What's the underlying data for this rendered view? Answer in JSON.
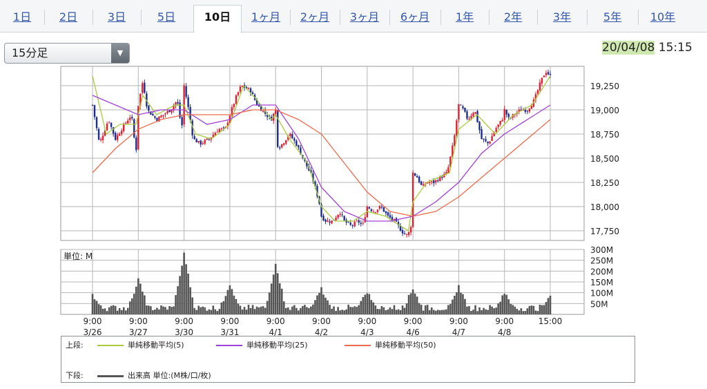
{
  "tabs": [
    {
      "label": "1日",
      "active": false
    },
    {
      "label": "2日",
      "active": false
    },
    {
      "label": "3日",
      "active": false
    },
    {
      "label": "5日",
      "active": false
    },
    {
      "label": "10日",
      "active": true
    },
    {
      "label": "1ヶ月",
      "active": false
    },
    {
      "label": "2ヶ月",
      "active": false
    },
    {
      "label": "3ヶ月",
      "active": false
    },
    {
      "label": "6ヶ月",
      "active": false
    },
    {
      "label": "1年",
      "active": false
    },
    {
      "label": "2年",
      "active": false
    },
    {
      "label": "3年",
      "active": false
    },
    {
      "label": "5年",
      "active": false
    },
    {
      "label": "10年",
      "active": false
    }
  ],
  "interval_select": {
    "value": "15分足"
  },
  "timestamp": {
    "date": "20/04/08",
    "time": "15:15"
  },
  "colors": {
    "up": "#e01e2e",
    "down": "#1d2c8f",
    "ma5": "#a8cc3a",
    "ma25": "#a040d8",
    "ma50": "#ee6a4a",
    "volume": "#555555",
    "grid": "#b5b5b5"
  },
  "chart_data": [
    {
      "type": "candlestick",
      "x_ticks": [
        {
          "time": "9:00",
          "date": "3/26"
        },
        {
          "time": "9:00",
          "date": "3/27"
        },
        {
          "time": "9:00",
          "date": "3/30"
        },
        {
          "time": "9:00",
          "date": "3/31"
        },
        {
          "time": "9:00",
          "date": "4/1"
        },
        {
          "time": "9:00",
          "date": "4/2"
        },
        {
          "time": "9:00",
          "date": "4/3"
        },
        {
          "time": "9:00",
          "date": "4/6"
        },
        {
          "time": "9:00",
          "date": "4/7"
        },
        {
          "time": "9:00",
          "date": "4/8"
        },
        {
          "time": "15:00",
          "date": ""
        }
      ],
      "y_ticks": [
        "19,250",
        "19,000",
        "18,750",
        "18,500",
        "18,250",
        "18,000",
        "17,750"
      ],
      "ylim": [
        17650,
        19450
      ],
      "grid": true,
      "close_path": [
        [
          0,
          19050
        ],
        [
          0.15,
          18650
        ],
        [
          0.35,
          18900
        ],
        [
          0.5,
          18700
        ],
        [
          0.7,
          18850
        ],
        [
          0.85,
          18950
        ],
        [
          0.95,
          18550
        ],
        [
          1.0,
          19050
        ],
        [
          1.1,
          19300
        ],
        [
          1.2,
          19000
        ],
        [
          1.4,
          18900
        ],
        [
          1.55,
          18950
        ],
        [
          1.7,
          19000
        ],
        [
          1.85,
          19100
        ],
        [
          1.95,
          18800
        ],
        [
          2.0,
          19250
        ],
        [
          2.1,
          19000
        ],
        [
          2.2,
          18700
        ],
        [
          2.35,
          18650
        ],
        [
          2.55,
          18700
        ],
        [
          2.75,
          18800
        ],
        [
          2.9,
          18800
        ],
        [
          3.0,
          18950
        ],
        [
          3.15,
          19150
        ],
        [
          3.25,
          19250
        ],
        [
          3.45,
          19200
        ],
        [
          3.6,
          19050
        ],
        [
          3.8,
          18950
        ],
        [
          3.9,
          18900
        ],
        [
          4.0,
          19000
        ],
        [
          4.05,
          18600
        ],
        [
          4.15,
          18650
        ],
        [
          4.3,
          18750
        ],
        [
          4.45,
          18650
        ],
        [
          4.6,
          18500
        ],
        [
          4.8,
          18300
        ],
        [
          4.95,
          18050
        ],
        [
          5.0,
          17900
        ],
        [
          5.1,
          17850
        ],
        [
          5.25,
          17850
        ],
        [
          5.4,
          17950
        ],
        [
          5.5,
          17850
        ],
        [
          5.65,
          17800
        ],
        [
          5.8,
          17850
        ],
        [
          5.9,
          17800
        ],
        [
          6.0,
          18000
        ],
        [
          6.15,
          17950
        ],
        [
          6.3,
          18000
        ],
        [
          6.45,
          17900
        ],
        [
          6.6,
          17850
        ],
        [
          6.75,
          17750
        ],
        [
          6.85,
          17700
        ],
        [
          6.95,
          17750
        ],
        [
          7.0,
          18350
        ],
        [
          7.1,
          18300
        ],
        [
          7.2,
          18200
        ],
        [
          7.3,
          18250
        ],
        [
          7.45,
          18250
        ],
        [
          7.6,
          18300
        ],
        [
          7.75,
          18350
        ],
        [
          7.9,
          18700
        ],
        [
          8.0,
          19050
        ],
        [
          8.1,
          19000
        ],
        [
          8.2,
          18900
        ],
        [
          8.35,
          19000
        ],
        [
          8.5,
          18700
        ],
        [
          8.65,
          18650
        ],
        [
          8.8,
          18800
        ],
        [
          8.95,
          18900
        ],
        [
          9.0,
          19000
        ],
        [
          9.1,
          18900
        ],
        [
          9.2,
          18950
        ],
        [
          9.35,
          19000
        ],
        [
          9.5,
          19000
        ],
        [
          9.65,
          19100
        ],
        [
          9.8,
          19300
        ],
        [
          9.9,
          19400
        ],
        [
          10.0,
          19350
        ]
      ],
      "ma_lines": [
        {
          "name": "MA5",
          "color": "#a8cc3a",
          "values": [
            [
              0,
              19350
            ],
            [
              0.3,
              18750
            ],
            [
              0.6,
              18850
            ],
            [
              0.95,
              18850
            ],
            [
              1.1,
              19150
            ],
            [
              1.4,
              18950
            ],
            [
              1.8,
              19050
            ],
            [
              2.0,
              19050
            ],
            [
              2.25,
              18750
            ],
            [
              2.6,
              18700
            ],
            [
              3.0,
              18850
            ],
            [
              3.3,
              19250
            ],
            [
              3.6,
              19100
            ],
            [
              3.9,
              18900
            ],
            [
              4.0,
              18950
            ],
            [
              4.3,
              18700
            ],
            [
              4.7,
              18450
            ],
            [
              5.0,
              18000
            ],
            [
              5.3,
              17850
            ],
            [
              5.7,
              17850
            ],
            [
              6.0,
              17950
            ],
            [
              6.4,
              17900
            ],
            [
              6.9,
              17750
            ],
            [
              7.0,
              18050
            ],
            [
              7.3,
              18250
            ],
            [
              7.8,
              18350
            ],
            [
              8.0,
              18800
            ],
            [
              8.4,
              18950
            ],
            [
              8.8,
              18750
            ],
            [
              9.2,
              18950
            ],
            [
              9.6,
              19050
            ],
            [
              10.0,
              19350
            ]
          ]
        },
        {
          "name": "MA25",
          "color": "#a040d8",
          "values": [
            [
              0,
              19150
            ],
            [
              0.5,
              19050
            ],
            [
              1.0,
              18950
            ],
            [
              1.5,
              19000
            ],
            [
              2.0,
              19000
            ],
            [
              2.5,
              18850
            ],
            [
              3.0,
              18900
            ],
            [
              3.5,
              19050
            ],
            [
              4.0,
              19050
            ],
            [
              4.5,
              18700
            ],
            [
              5.0,
              18200
            ],
            [
              5.5,
              17950
            ],
            [
              6.0,
              17850
            ],
            [
              6.5,
              17850
            ],
            [
              7.0,
              17900
            ],
            [
              7.5,
              18050
            ],
            [
              8.0,
              18250
            ],
            [
              8.5,
              18550
            ],
            [
              9.0,
              18750
            ],
            [
              9.5,
              18900
            ],
            [
              10.0,
              19050
            ]
          ]
        },
        {
          "name": "MA50",
          "color": "#ee6a4a",
          "values": [
            [
              0,
              18350
            ],
            [
              0.5,
              18600
            ],
            [
              1.0,
              18800
            ],
            [
              1.5,
              18900
            ],
            [
              2.0,
              18950
            ],
            [
              2.5,
              18950
            ],
            [
              3.0,
              18950
            ],
            [
              3.5,
              19000
            ],
            [
              4.0,
              19000
            ],
            [
              4.5,
              18900
            ],
            [
              5.0,
              18750
            ],
            [
              5.5,
              18450
            ],
            [
              6.0,
              18150
            ],
            [
              6.5,
              17950
            ],
            [
              7.0,
              17900
            ],
            [
              7.5,
              17950
            ],
            [
              8.0,
              18100
            ],
            [
              8.5,
              18300
            ],
            [
              9.0,
              18500
            ],
            [
              9.5,
              18700
            ],
            [
              10.0,
              18900
            ]
          ]
        }
      ]
    },
    {
      "type": "bar",
      "unit_label": "単位: M",
      "y_ticks": [
        "300M",
        "250M",
        "200M",
        "150M",
        "100M",
        "50M"
      ],
      "ylim": [
        0,
        300
      ],
      "session_open_spikes": [
        {
          "x": 0,
          "value": 80
        },
        {
          "x": 1,
          "value": 150
        },
        {
          "x": 2,
          "value": 270
        },
        {
          "x": 3,
          "value": 130
        },
        {
          "x": 4,
          "value": 220
        },
        {
          "x": 5,
          "value": 110
        },
        {
          "x": 6,
          "value": 95
        },
        {
          "x": 7,
          "value": 110
        },
        {
          "x": 8,
          "value": 120
        },
        {
          "x": 9,
          "value": 90
        },
        {
          "x": 10,
          "value": 80
        }
      ],
      "baseline": [
        15,
        45
      ]
    }
  ],
  "legend": {
    "upper_label": "上段:",
    "items": [
      {
        "label": "単純移動平均(5)",
        "color": "#a8cc3a"
      },
      {
        "label": "単純移動平均(25)",
        "color": "#a040d8"
      },
      {
        "label": "単純移動平均(50)",
        "color": "#ee6a4a"
      }
    ],
    "lower_label": "下段:",
    "lower_item": {
      "label": "出来高 単位:(M株/口/枚)",
      "color": "#555555"
    }
  }
}
